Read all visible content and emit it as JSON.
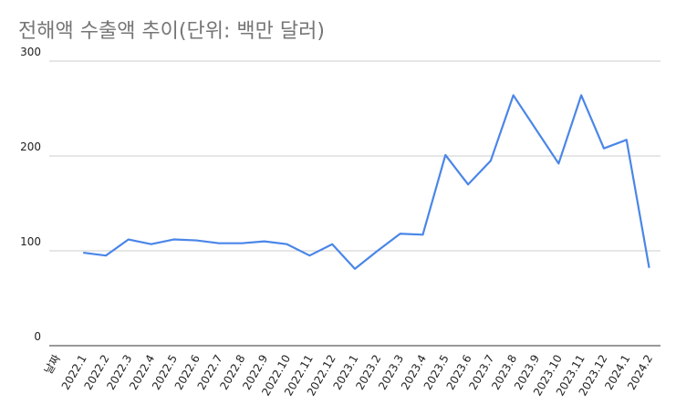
{
  "chart_data": {
    "type": "line",
    "title": "전해액 수출액 추이(단위: 백만 달러)",
    "x_label": "날짜",
    "categories": [
      "2022.1",
      "2022.2",
      "2022.3",
      "2022.4",
      "2022.5",
      "2022.6",
      "2022.7",
      "2022.8",
      "2022.9",
      "2022.10",
      "2022.11",
      "2022.12",
      "2023.1",
      "2023.2",
      "2023.3",
      "2023.4",
      "2023.5",
      "2023.6",
      "2023.7",
      "2023.8",
      "2023.9",
      "2023.10",
      "2023.11",
      "2023.12",
      "2024.1",
      "2024.2"
    ],
    "series": [
      {
        "name": "수출액",
        "color": "#4a86e8",
        "values": [
          98,
          95,
          112,
          107,
          112,
          111,
          108,
          108,
          110,
          107,
          95,
          107,
          81,
          100,
          118,
          117,
          201,
          170,
          195,
          264,
          228,
          192,
          264,
          208,
          217,
          82
        ]
      }
    ],
    "ylim": [
      0,
      300
    ],
    "yticks": [
      0,
      100,
      200,
      300
    ],
    "grid": true
  }
}
